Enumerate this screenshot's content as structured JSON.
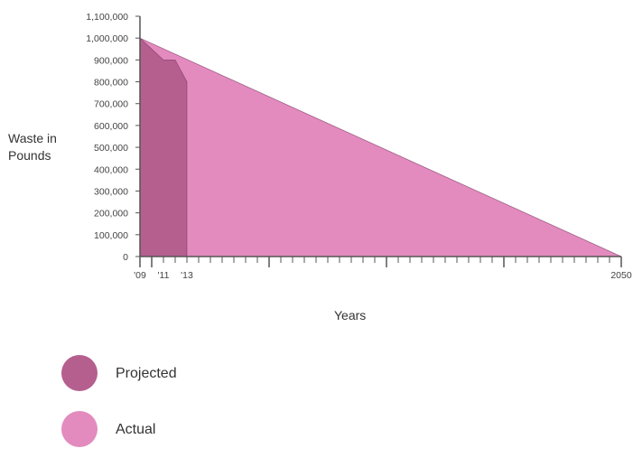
{
  "chart_data": {
    "type": "area",
    "xlabel": "Years",
    "ylabel": "Waste in Pounds",
    "ylim": [
      0,
      1100000
    ],
    "xlim": [
      2009,
      2050
    ],
    "y_ticks": [
      0,
      100000,
      200000,
      300000,
      400000,
      500000,
      600000,
      700000,
      800000,
      900000,
      1000000,
      1100000
    ],
    "y_tick_labels": [
      "0",
      "100,000",
      "200,000",
      "300,000",
      "400,000",
      "500,000",
      "600,000",
      "700,000",
      "800,000",
      "900,000",
      "1,000,000",
      "1,100,000"
    ],
    "x_tick_labels": [
      {
        "x": 2009,
        "label": "'09"
      },
      {
        "x": 2011,
        "label": "'11"
      },
      {
        "x": 2013,
        "label": "'13"
      },
      {
        "x": 2050,
        "label": "2050"
      }
    ],
    "series": [
      {
        "name": "Actual",
        "color": "#e38bbe",
        "points": [
          [
            2009,
            1000000
          ],
          [
            2050,
            0
          ]
        ]
      },
      {
        "name": "Projected",
        "color": "#b55f8f",
        "points": [
          [
            2009,
            1000000
          ],
          [
            2011,
            900000
          ],
          [
            2012,
            900000
          ],
          [
            2013,
            800000
          ]
        ]
      }
    ]
  },
  "legend": [
    {
      "label": "Projected",
      "color": "#b55f8f"
    },
    {
      "label": "Actual",
      "color": "#e38bbe"
    }
  ]
}
